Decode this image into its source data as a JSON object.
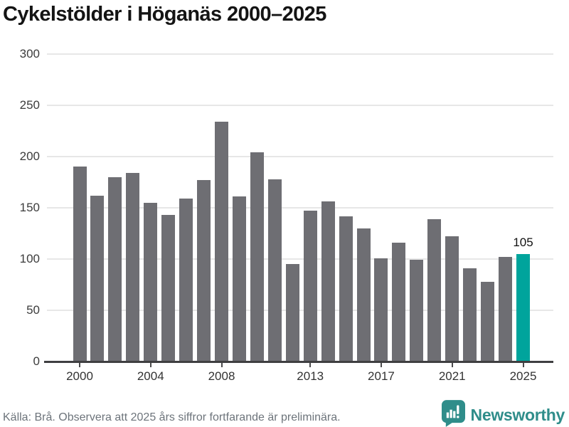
{
  "chart_data": {
    "type": "bar",
    "title": "Cykelstölder i Höganäs 2000–2025",
    "categories": [
      2000,
      2001,
      2002,
      2003,
      2004,
      2005,
      2006,
      2007,
      2008,
      2009,
      2010,
      2011,
      2012,
      2013,
      2014,
      2015,
      2016,
      2017,
      2018,
      2019,
      2020,
      2021,
      2022,
      2023,
      2024,
      2025
    ],
    "values": [
      190,
      162,
      180,
      184,
      155,
      143,
      159,
      177,
      234,
      161,
      204,
      178,
      95,
      147,
      156,
      142,
      130,
      101,
      116,
      99,
      139,
      122,
      91,
      78,
      102,
      105
    ],
    "highlight": {
      "year": 2025,
      "value": 105,
      "label": "105"
    },
    "xlabel": "",
    "ylabel": "",
    "yticks": [
      0,
      50,
      100,
      150,
      200,
      250,
      300
    ],
    "xticks": [
      2000,
      2004,
      2008,
      2013,
      2017,
      2021,
      2025
    ],
    "ylim": [
      0,
      300
    ],
    "grid": "horizontal",
    "legend": "none",
    "colors": {
      "bar": "#6e6e73",
      "highlight": "#00a49c"
    }
  },
  "footer": {
    "source_text": "Källa: Brå. Observera att 2025 års siffror fortfarande är preliminära.",
    "brand": {
      "name": "Newsworthy",
      "color": "#2f8d8a"
    }
  }
}
